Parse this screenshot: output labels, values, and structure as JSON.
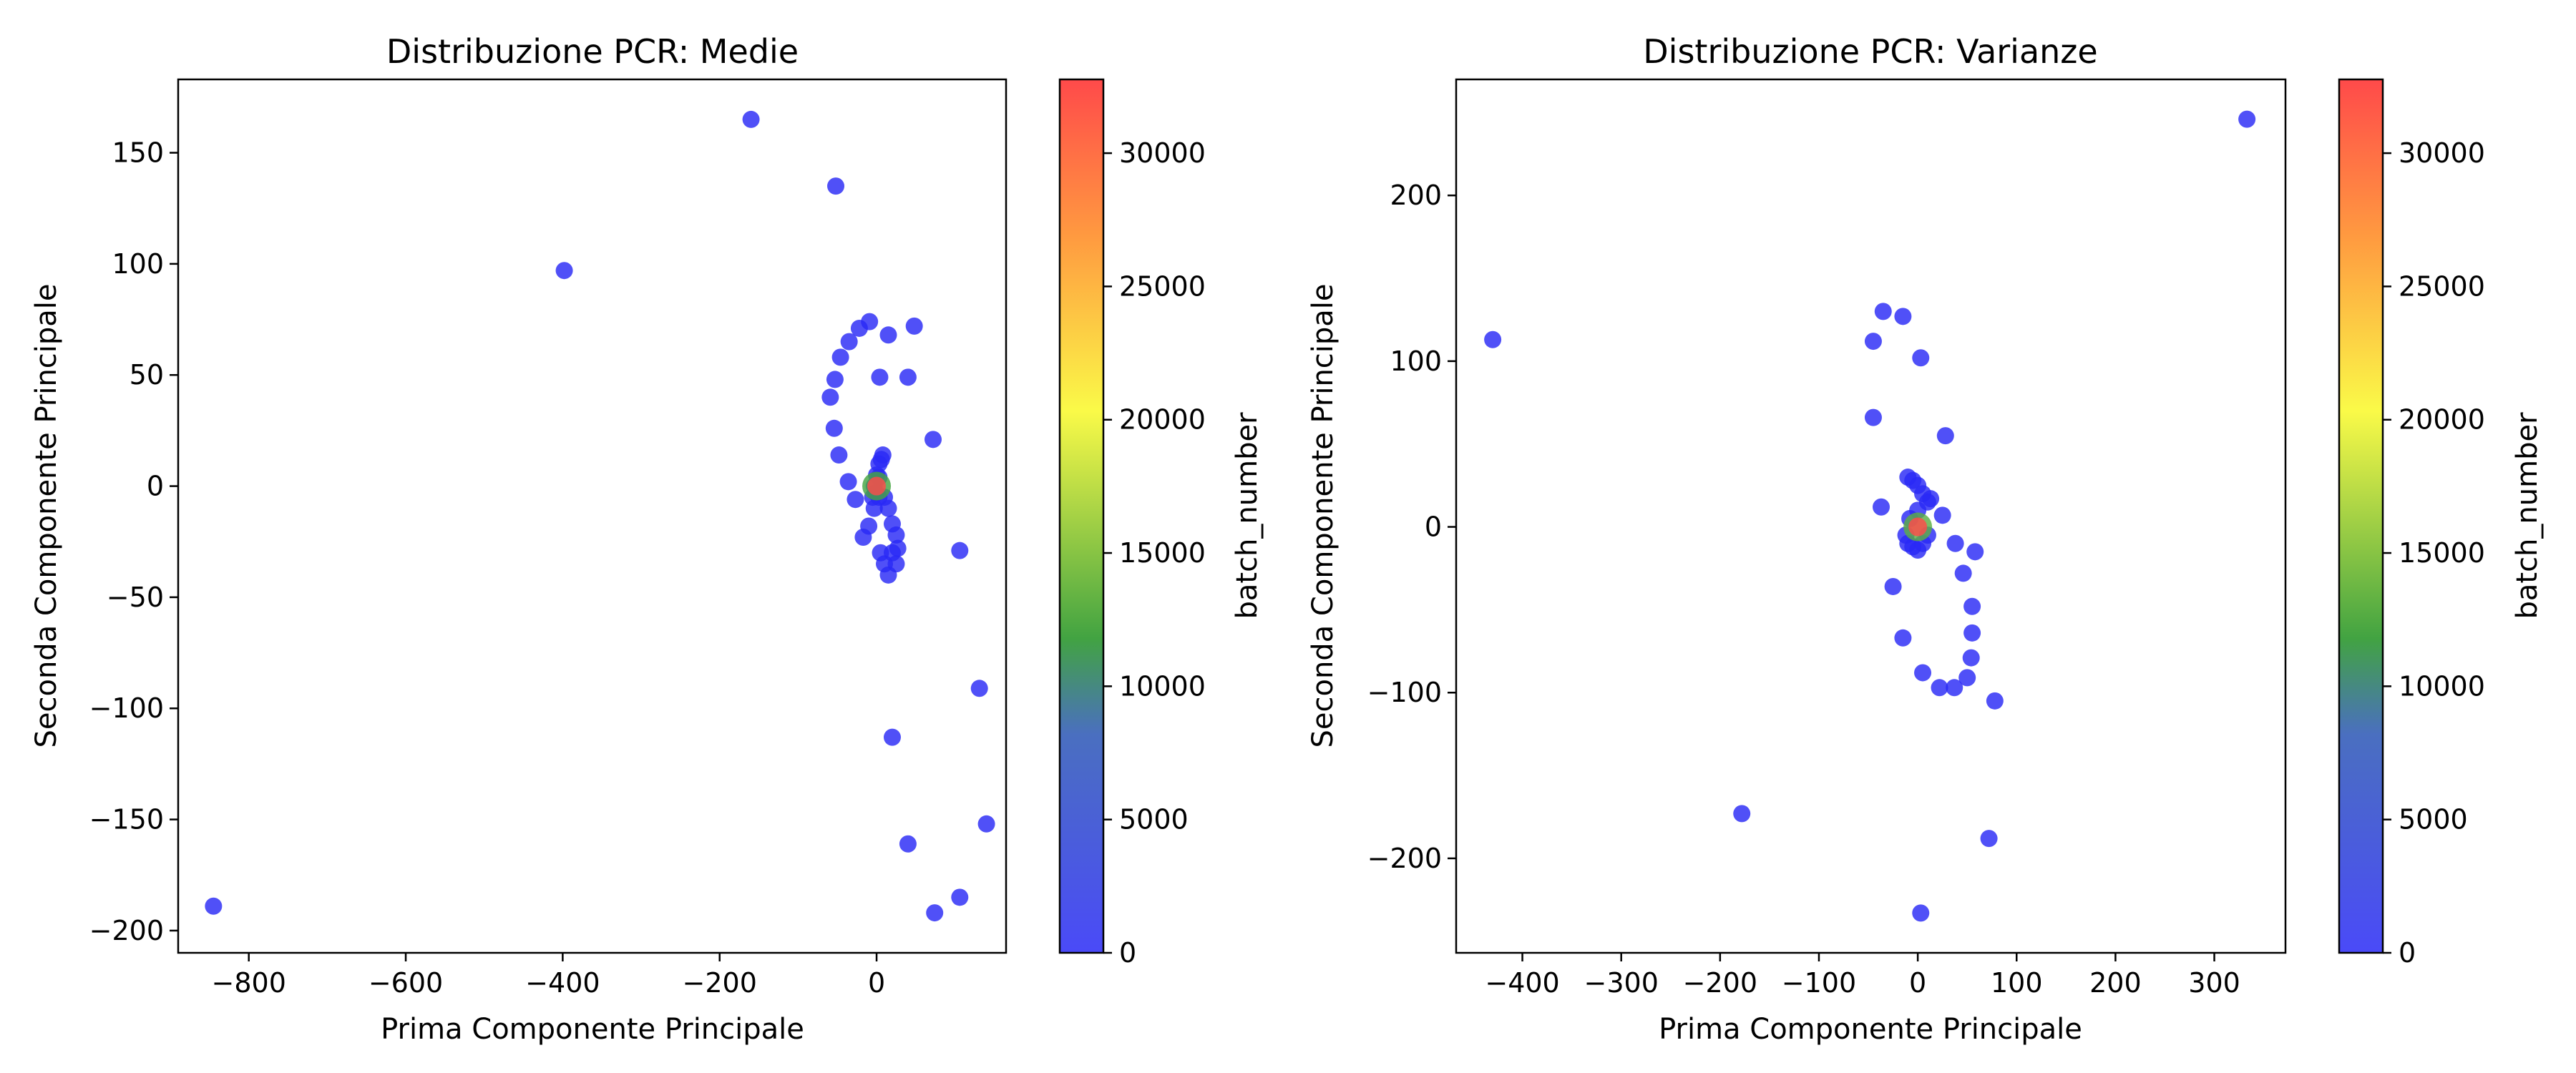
{
  "chart_data": [
    {
      "type": "scatter",
      "title": "Distribuzione PCR: Medie",
      "xlabel": "Prima Componente Principale",
      "ylabel": "Seconda Componente Principale",
      "xlim": [
        -890,
        165
      ],
      "ylim": [
        -210,
        183
      ],
      "xticks": [
        -800,
        -600,
        -400,
        -200,
        0
      ],
      "yticks": [
        -200,
        -150,
        -100,
        -50,
        0,
        50,
        100,
        150
      ],
      "colorbar": {
        "label": "batch_number",
        "range": [
          0,
          32767
        ],
        "ticks": [
          0,
          5000,
          10000,
          15000,
          20000,
          25000,
          30000
        ]
      },
      "grid": false,
      "point_color": "#2a2af5",
      "series": [
        {
          "x": [
            -845,
            -398,
            -160,
            -52,
            48,
            -9,
            -22,
            15,
            -35,
            -46,
            4,
            40,
            -53,
            -59,
            -54,
            72,
            -48,
            -36,
            106,
            131,
            20,
            40,
            140,
            74,
            106,
            5,
            10,
            15,
            20,
            25,
            27,
            25,
            20,
            15,
            10,
            3,
            -3,
            -10,
            -17,
            -27,
            -5,
            -3,
            0,
            3,
            6,
            8,
            3,
            -1
          ],
          "y": [
            -189,
            97,
            165,
            135,
            72,
            74,
            71,
            68,
            65,
            58,
            49,
            49,
            48,
            40,
            26,
            21,
            14,
            2,
            -29,
            -91,
            -113,
            -161,
            -152,
            -192,
            -185,
            -30,
            -35,
            -40,
            -30,
            -35,
            -28,
            -22,
            -17,
            -10,
            -5,
            -5,
            -10,
            -18,
            -23,
            -6,
            -5,
            0,
            5,
            10,
            12,
            14,
            4,
            -3
          ],
          "batch": [
            500,
            500,
            500,
            500,
            500,
            500,
            500,
            500,
            500,
            500,
            500,
            500,
            500,
            500,
            500,
            500,
            500,
            500,
            500,
            500,
            500,
            500,
            500,
            500,
            500,
            500,
            500,
            500,
            500,
            500,
            500,
            500,
            500,
            500,
            500,
            500,
            500,
            500,
            500,
            500,
            500,
            500,
            500,
            500,
            500,
            500,
            500,
            500
          ]
        },
        {
          "x": [
            0,
            0
          ],
          "y": [
            0,
            0
          ],
          "batch": [
            12000,
            32767
          ]
        }
      ]
    },
    {
      "type": "scatter",
      "title": "Distribuzione PCR: Varianze",
      "xlabel": "Prima Componente Principale",
      "ylabel": "Seconda Componente Principale",
      "xlim": [
        -467,
        372
      ],
      "ylim": [
        -257,
        270
      ],
      "xticks": [
        -400,
        -300,
        -200,
        -100,
        0,
        100,
        200,
        300
      ],
      "yticks": [
        -200,
        -100,
        0,
        100,
        200
      ],
      "colorbar": {
        "label": "batch_number",
        "range": [
          0,
          32767
        ],
        "ticks": [
          0,
          5000,
          10000,
          15000,
          20000,
          25000,
          30000
        ]
      },
      "grid": false,
      "point_color": "#2a2af5",
      "series": [
        {
          "x": [
            -430,
            333,
            -35,
            -15,
            -45,
            3,
            -45,
            28,
            -37,
            13,
            25,
            38,
            58,
            46,
            -25,
            55,
            -15,
            55,
            54,
            5,
            22,
            37,
            50,
            78,
            -178,
            72,
            3,
            -10,
            -5,
            0,
            5,
            10,
            0,
            -8,
            -12,
            -10,
            -5,
            0,
            5,
            10
          ],
          "y": [
            113,
            246,
            130,
            127,
            112,
            102,
            66,
            55,
            12,
            17,
            7,
            -10,
            -15,
            -28,
            -36,
            -48,
            -67,
            -64,
            -79,
            -88,
            -97,
            -97,
            -91,
            -105,
            -173,
            -188,
            -233,
            30,
            28,
            25,
            20,
            15,
            10,
            5,
            -5,
            -10,
            -12,
            -14,
            -10,
            -5
          ],
          "batch": [
            500,
            500,
            500,
            500,
            500,
            500,
            500,
            500,
            500,
            500,
            500,
            500,
            500,
            500,
            500,
            500,
            500,
            500,
            500,
            500,
            500,
            500,
            500,
            500,
            500,
            500,
            500,
            500,
            500,
            500,
            500,
            500,
            500,
            500,
            500,
            500,
            500,
            500,
            500,
            500
          ]
        },
        {
          "x": [
            0,
            0
          ],
          "y": [
            0,
            0
          ],
          "batch": [
            13000,
            32767
          ]
        }
      ]
    }
  ]
}
